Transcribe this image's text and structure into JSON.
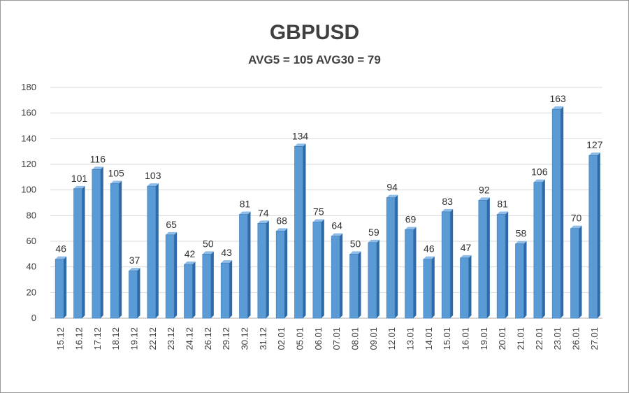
{
  "chart_data": {
    "type": "bar",
    "title": "GBPUSD",
    "subtitle": "AVG5 = 105 AVG30 = 79",
    "xlabel": "",
    "ylabel": "",
    "ylim": [
      0,
      180
    ],
    "yticks": [
      0,
      20,
      40,
      60,
      80,
      100,
      120,
      140,
      160,
      180
    ],
    "grid": true,
    "legend": "none",
    "bar_color": "#5b9bd5",
    "categories": [
      "15.12",
      "16.12",
      "17.12",
      "18.12",
      "19.12",
      "22.12",
      "23.12",
      "24.12",
      "26.12",
      "29.12",
      "30.12",
      "31.12",
      "02.01",
      "05.01",
      "06.01",
      "07.01",
      "08.01",
      "09.01",
      "12.01",
      "13.01",
      "14.01",
      "15.01",
      "16.01",
      "19.01",
      "20.01",
      "21.01",
      "22.01",
      "23.01",
      "26.01",
      "27.01"
    ],
    "values": [
      46,
      101,
      116,
      105,
      37,
      103,
      65,
      42,
      50,
      43,
      81,
      74,
      68,
      134,
      75,
      64,
      50,
      59,
      94,
      69,
      46,
      83,
      47,
      92,
      81,
      58,
      106,
      163,
      70,
      127
    ]
  }
}
